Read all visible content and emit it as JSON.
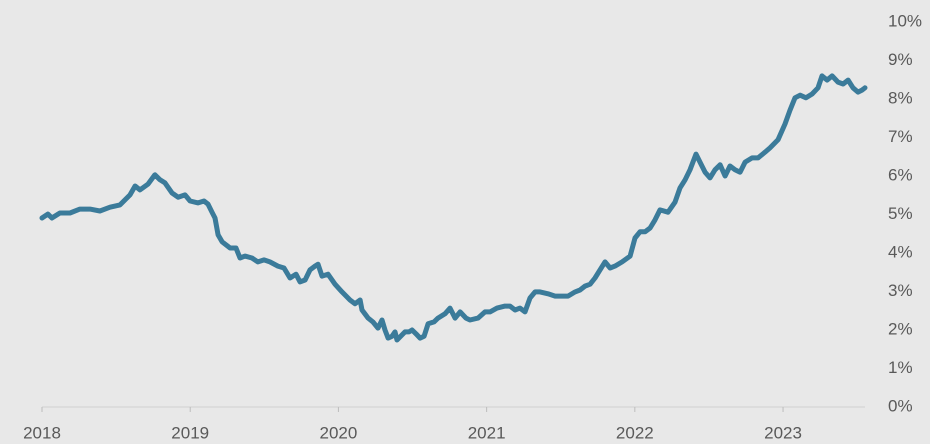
{
  "chart_data": {
    "type": "line",
    "x": [
      2018.0,
      2018.04,
      2018.067,
      2018.121,
      2018.189,
      2018.256,
      2018.324,
      2018.391,
      2018.459,
      2018.526,
      2018.56,
      2018.594,
      2018.628,
      2018.661,
      2018.715,
      2018.762,
      2018.796,
      2018.83,
      2018.877,
      2018.918,
      2018.965,
      2018.999,
      2019.053,
      2019.093,
      2019.12,
      2019.147,
      2019.167,
      2019.188,
      2019.215,
      2019.269,
      2019.309,
      2019.336,
      2019.37,
      2019.417,
      2019.457,
      2019.498,
      2019.538,
      2019.592,
      2019.633,
      2019.673,
      2019.714,
      2019.741,
      2019.775,
      2019.808,
      2019.842,
      2019.862,
      2019.889,
      2019.93,
      2019.977,
      2020.024,
      2020.078,
      2020.112,
      2020.146,
      2020.159,
      2020.179,
      2020.2,
      2020.233,
      2020.267,
      2020.294,
      2020.314,
      2020.335,
      2020.362,
      2020.382,
      2020.395,
      2020.449,
      2020.476,
      2020.497,
      2020.524,
      2020.551,
      2020.578,
      2020.605,
      2020.645,
      2020.672,
      2020.719,
      2020.753,
      2020.787,
      2020.821,
      2020.861,
      2020.888,
      2020.942,
      2020.989,
      2021.023,
      2021.07,
      2021.124,
      2021.158,
      2021.192,
      2021.225,
      2021.259,
      2021.293,
      2021.327,
      2021.36,
      2021.414,
      2021.462,
      2021.495,
      2021.549,
      2021.597,
      2021.63,
      2021.664,
      2021.698,
      2021.731,
      2021.765,
      2021.799,
      2021.833,
      2021.866,
      2021.914,
      2021.968,
      2022.001,
      2022.035,
      2022.069,
      2022.103,
      2022.136,
      2022.17,
      2022.224,
      2022.271,
      2022.305,
      2022.339,
      2022.372,
      2022.413,
      2022.44,
      2022.474,
      2022.507,
      2022.541,
      2022.575,
      2022.609,
      2022.642,
      2022.676,
      2022.71,
      2022.744,
      2022.791,
      2022.831,
      2022.879,
      2022.912,
      2022.966,
      2023.013,
      2023.047,
      2023.081,
      2023.115,
      2023.155,
      2023.196,
      2023.236,
      2023.263,
      2023.297,
      2023.331,
      2023.371,
      2023.405,
      2023.439,
      2023.472,
      2023.506,
      2023.533,
      2023.553
    ],
    "values": [
      4.91,
      5.01,
      4.91,
      5.04,
      5.04,
      5.14,
      5.14,
      5.09,
      5.19,
      5.25,
      5.38,
      5.51,
      5.74,
      5.64,
      5.79,
      6.03,
      5.9,
      5.82,
      5.56,
      5.45,
      5.51,
      5.35,
      5.3,
      5.35,
      5.27,
      5.06,
      4.91,
      4.47,
      4.29,
      4.13,
      4.13,
      3.87,
      3.92,
      3.87,
      3.77,
      3.82,
      3.77,
      3.66,
      3.61,
      3.35,
      3.45,
      3.25,
      3.3,
      3.56,
      3.66,
      3.71,
      3.4,
      3.45,
      3.19,
      2.99,
      2.78,
      2.68,
      2.78,
      2.52,
      2.42,
      2.31,
      2.21,
      2.05,
      2.26,
      2.0,
      1.79,
      1.84,
      1.95,
      1.74,
      1.95,
      1.95,
      2.0,
      1.9,
      1.79,
      1.84,
      2.16,
      2.21,
      2.31,
      2.42,
      2.57,
      2.31,
      2.47,
      2.31,
      2.26,
      2.31,
      2.47,
      2.47,
      2.57,
      2.62,
      2.62,
      2.52,
      2.57,
      2.47,
      2.83,
      2.99,
      2.99,
      2.94,
      2.88,
      2.88,
      2.88,
      2.99,
      3.04,
      3.14,
      3.19,
      3.35,
      3.56,
      3.77,
      3.61,
      3.66,
      3.77,
      3.92,
      4.39,
      4.55,
      4.55,
      4.65,
      4.86,
      5.12,
      5.06,
      5.32,
      5.69,
      5.9,
      6.16,
      6.57,
      6.36,
      6.1,
      5.95,
      6.16,
      6.29,
      6.0,
      6.26,
      6.16,
      6.1,
      6.36,
      6.47,
      6.47,
      6.62,
      6.73,
      6.94,
      7.35,
      7.71,
      8.03,
      8.1,
      8.03,
      8.13,
      8.29,
      8.6,
      8.49,
      8.6,
      8.44,
      8.39,
      8.49,
      8.29,
      8.18,
      8.23,
      8.29
    ],
    "color": "#3b7b9a",
    "xlim": [
      2018,
      2023.553
    ],
    "xticks": [
      2018,
      2019,
      2020,
      2021,
      2022,
      2023
    ],
    "ylim": [
      0,
      10
    ],
    "yticks": [
      {
        "value": 0,
        "label": "0%"
      },
      {
        "value": 1,
        "label": "1%"
      },
      {
        "value": 2,
        "label": "2%"
      },
      {
        "value": 3,
        "label": "3%"
      },
      {
        "value": 4,
        "label": "4%"
      },
      {
        "value": 5,
        "label": "5%"
      },
      {
        "value": 6,
        "label": "6%"
      },
      {
        "value": 7,
        "label": "7%"
      },
      {
        "value": 8,
        "label": "8%"
      },
      {
        "value": 9,
        "label": "9%"
      },
      {
        "value": 10,
        "label": "10%"
      }
    ]
  }
}
